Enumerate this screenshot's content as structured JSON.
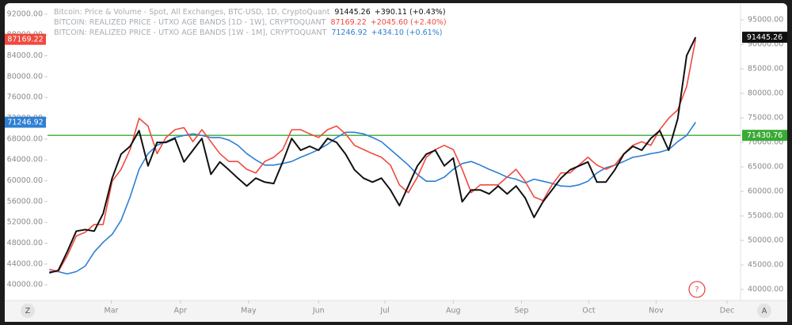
{
  "chart_data": {
    "type": "line",
    "xlim": [
      -0.2,
      77
    ],
    "xticks": [
      {
        "value": 6.9,
        "label": "Mar"
      },
      {
        "value": 14.6,
        "label": "Apr"
      },
      {
        "value": 22.2,
        "label": "May"
      },
      {
        "value": 30.0,
        "label": "Jun"
      },
      {
        "value": 37.4,
        "label": "Jul"
      },
      {
        "value": 45.0,
        "label": "Aug"
      },
      {
        "value": 52.6,
        "label": "Sep"
      },
      {
        "value": 60.1,
        "label": "Oct"
      },
      {
        "value": 67.6,
        "label": "Nov"
      },
      {
        "value": 75.5,
        "label": "Dec"
      }
    ],
    "ylim": [
      37000,
      93500
    ],
    "yticks": [
      {
        "value": 40000,
        "label": "40000.00"
      },
      {
        "value": 44000,
        "label": "44000.00"
      },
      {
        "value": 48000,
        "label": "48000.00"
      },
      {
        "value": 52000,
        "label": "52000.00"
      },
      {
        "value": 56000,
        "label": "56000.00"
      },
      {
        "value": 60000,
        "label": "60000.00"
      },
      {
        "value": 64000,
        "label": "64000.00"
      },
      {
        "value": 68000,
        "label": "68000.00"
      },
      {
        "value": 72000,
        "label": "72000.00"
      },
      {
        "value": 76000,
        "label": "76000.00"
      },
      {
        "value": 80000,
        "label": "80000.00"
      },
      {
        "value": 84000,
        "label": "84000.00"
      },
      {
        "value": 88000,
        "label": "88000.00"
      },
      {
        "value": 92000,
        "label": "92000.00"
      }
    ],
    "y2lim": [
      37750,
      97750
    ],
    "y2ticks": [
      {
        "value": 40000,
        "label": "40000.00"
      },
      {
        "value": 45000,
        "label": "45000.00"
      },
      {
        "value": 50000,
        "label": "50000.00"
      },
      {
        "value": 55000,
        "label": "55000.00"
      },
      {
        "value": 60000,
        "label": "60000.00"
      },
      {
        "value": 65000,
        "label": "65000.00"
      },
      {
        "value": 70000,
        "label": "70000.00"
      },
      {
        "value": 75000,
        "label": "75000.00"
      },
      {
        "value": 80000,
        "label": "80000.00"
      },
      {
        "value": 85000,
        "label": "85000.00"
      },
      {
        "value": 90000,
        "label": "90000.00"
      },
      {
        "value": 95000,
        "label": "95000.00"
      }
    ],
    "series": [
      {
        "name": "Bitcoin: Price & Volume - Spot, All Exchanges, BTC-USD, 1D, CryptoQuant",
        "color": "#111111",
        "axis": "y2",
        "change": "+390.11 (+0.43%)",
        "values": [
          43384,
          43900,
          47700,
          51900,
          52200,
          51900,
          55500,
          62700,
          67600,
          69200,
          72400,
          65200,
          70000,
          70000,
          70800,
          66000,
          68400,
          70800,
          63500,
          66000,
          64400,
          62700,
          61100,
          62700,
          61900,
          61600,
          66000,
          70800,
          68400,
          69200,
          68400,
          70800,
          70000,
          67600,
          64400,
          62700,
          61900,
          62700,
          60300,
          57100,
          61100,
          65200,
          67600,
          68400,
          65200,
          66800,
          57900,
          60300,
          60300,
          59500,
          61100,
          59500,
          61100,
          58700,
          54700,
          57900,
          60300,
          62700,
          64400,
          65200,
          66000,
          61900,
          61900,
          64400,
          67600,
          69200,
          68400,
          70800,
          72400,
          68400,
          74800,
          87700,
          91445.26
        ]
      },
      {
        "name": "BITCOIN: REALIZED PRICE - UTXO AGE BANDS [1D - 1W], CRYPTOQUANT",
        "color": "#f0493e",
        "change": "+2045.60 (+2.40%)",
        "values": [
          43000,
          42550,
          45600,
          49400,
          50100,
          51600,
          51600,
          59900,
          62200,
          66000,
          72000,
          70500,
          65200,
          68300,
          69800,
          70200,
          67500,
          69800,
          67500,
          65200,
          63700,
          63700,
          62200,
          61500,
          63700,
          64500,
          66000,
          69800,
          69800,
          69000,
          68300,
          69800,
          70500,
          69000,
          66800,
          66000,
          65200,
          64500,
          63000,
          59200,
          57700,
          60700,
          64500,
          66000,
          66800,
          66000,
          62200,
          57700,
          59200,
          59200,
          59200,
          60700,
          62200,
          59900,
          56900,
          56200,
          59200,
          61500,
          61500,
          63000,
          64500,
          63000,
          62200,
          63000,
          65200,
          66800,
          67500,
          66800,
          69800,
          72000,
          73600,
          78100,
          87169.22
        ]
      },
      {
        "name": "BITCOIN: REALIZED PRICE - UTXO AGE BANDS [1W - 1M], CRYPTOQUANT",
        "color": "#2d7fd3",
        "change": "+434.10 (+0.61%)",
        "values": [
          42550,
          42550,
          42100,
          42550,
          43600,
          46300,
          48200,
          49700,
          52400,
          56900,
          62200,
          65200,
          66800,
          67500,
          68300,
          68700,
          69000,
          68700,
          68300,
          68300,
          67800,
          66800,
          65200,
          64000,
          63000,
          63000,
          63300,
          63700,
          64500,
          65200,
          66000,
          67000,
          68300,
          69300,
          69300,
          69000,
          68300,
          67500,
          66000,
          64500,
          63000,
          61200,
          59900,
          59900,
          60700,
          62200,
          63300,
          63700,
          63000,
          62200,
          61500,
          60700,
          60300,
          59600,
          60300,
          59900,
          59500,
          59000,
          58900,
          59200,
          59900,
          61500,
          62500,
          63000,
          63700,
          64500,
          64800,
          65200,
          65500,
          66000,
          67500,
          68700,
          71246.92
        ]
      }
    ],
    "hline": {
      "value": 71430.76,
      "color": "#3aaa35",
      "axis": "y2"
    },
    "controls": {
      "left": "Z",
      "right": "A",
      "help": "?"
    }
  }
}
